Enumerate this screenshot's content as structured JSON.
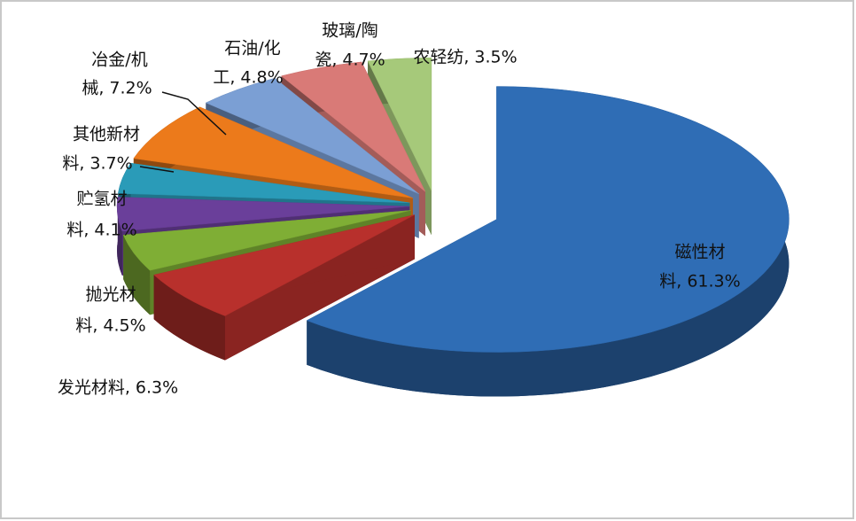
{
  "chart_data": {
    "type": "pie3d",
    "values": [
      61.3,
      6.3,
      4.5,
      4.1,
      3.7,
      7.2,
      4.8,
      4.7,
      3.5
    ],
    "value_labels": [
      [
        "磁性材",
        "料, 61.3%"
      ],
      [
        "发光材料, 6.3%"
      ],
      [
        "抛光材",
        "料, 4.5%"
      ],
      [
        "贮氢材",
        "料, 4.1%"
      ],
      [
        "其他新材",
        "料, 3.7%"
      ],
      [
        "冶金/机",
        "械, 7.2%"
      ],
      [
        "石油/化",
        "工, 4.8%"
      ],
      [
        "玻璃/陶",
        "瓷, 4.7%"
      ],
      [
        "农轻纺, 3.5%"
      ]
    ],
    "colors": [
      "#2f6db5",
      "#b8302c",
      "#7fae35",
      "#6a3f9a",
      "#2a9bb8",
      "#ec7a1b",
      "#7b9fd4",
      "#d97a77",
      "#a6c97a"
    ]
  }
}
